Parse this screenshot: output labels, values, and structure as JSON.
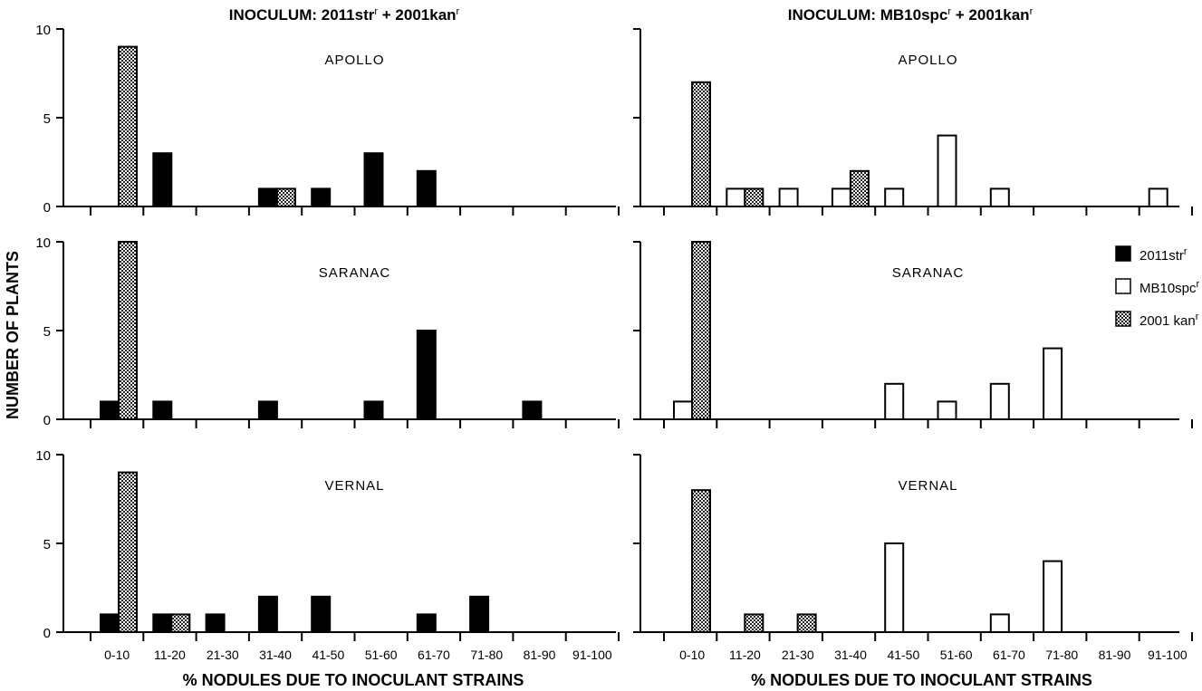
{
  "titles": [
    {
      "prefix": "INOCULUM:  2011str",
      "sup": "r",
      "suffix": " + 2001kan",
      "sup2": "r"
    },
    {
      "prefix": "INOCULUM:  MB10spc",
      "sup": "r",
      "suffix": " + 2001kan",
      "sup2": "r"
    }
  ],
  "ylabel": "NUMBER OF PLANTS",
  "legend": [
    {
      "label": "2011str",
      "sup": "r",
      "pattern": "solid"
    },
    {
      "label": "MB10spc",
      "sup": "r",
      "pattern": "open"
    },
    {
      "label": "2001 kan",
      "sup": "r",
      "pattern": "checker"
    }
  ],
  "colors": {
    "solid": "#000000",
    "open": "#ffffff",
    "checker_dark": "#222222",
    "checker_light": "#ffffff",
    "axis": "#000000"
  },
  "chart_data": [
    {
      "type": "bar",
      "panel": "Left column, APOLLO",
      "cultivar": "APOLLO",
      "categories": [
        "0-10",
        "11-20",
        "21-30",
        "31-40",
        "41-50",
        "51-60",
        "61-70",
        "71-80",
        "81-90",
        "91-100"
      ],
      "xlabel": "% NODULES DUE TO INOCULANT STRAINS",
      "ylim": [
        0,
        10
      ],
      "yticks": [
        0,
        5,
        10
      ],
      "series": [
        {
          "name": "2011str",
          "pattern": "solid",
          "values": [
            0,
            3,
            0,
            1,
            1,
            3,
            2,
            0,
            0,
            0
          ]
        },
        {
          "name": "2001kan",
          "pattern": "checker",
          "values": [
            9,
            0,
            0,
            1,
            0,
            0,
            0,
            0,
            0,
            0
          ]
        }
      ]
    },
    {
      "type": "bar",
      "panel": "Left column, SARANAC",
      "cultivar": "SARANAC",
      "categories": [
        "0-10",
        "11-20",
        "21-30",
        "31-40",
        "41-50",
        "51-60",
        "61-70",
        "71-80",
        "81-90",
        "91-100"
      ],
      "xlabel": "% NODULES DUE TO INOCULANT STRAINS",
      "ylim": [
        0,
        10
      ],
      "yticks": [
        0,
        5,
        10
      ],
      "series": [
        {
          "name": "2011str",
          "pattern": "solid",
          "values": [
            1,
            1,
            0,
            1,
            0,
            1,
            5,
            0,
            1,
            0
          ]
        },
        {
          "name": "2001kan",
          "pattern": "checker",
          "values": [
            10,
            0,
            0,
            0,
            0,
            0,
            0,
            0,
            0,
            0
          ]
        }
      ]
    },
    {
      "type": "bar",
      "panel": "Left column, VERNAL",
      "cultivar": "VERNAL",
      "categories": [
        "0-10",
        "11-20",
        "21-30",
        "31-40",
        "41-50",
        "51-60",
        "61-70",
        "71-80",
        "81-90",
        "91-100"
      ],
      "xlabel": "% NODULES DUE TO INOCULANT STRAINS",
      "ylim": [
        0,
        10
      ],
      "yticks": [
        0,
        5,
        10
      ],
      "series": [
        {
          "name": "2011str",
          "pattern": "solid",
          "values": [
            1,
            1,
            1,
            2,
            2,
            0,
            1,
            2,
            0,
            0
          ]
        },
        {
          "name": "2001kan",
          "pattern": "checker",
          "values": [
            9,
            1,
            0,
            0,
            0,
            0,
            0,
            0,
            0,
            0
          ]
        }
      ]
    },
    {
      "type": "bar",
      "panel": "Right column, APOLLO",
      "cultivar": "APOLLO",
      "categories": [
        "0-10",
        "11-20",
        "21-30",
        "31-40",
        "41-50",
        "51-60",
        "61-70",
        "71-80",
        "81-90",
        "91-100"
      ],
      "xlabel": "% NODULES DUE TO INOCULANT STRAINS",
      "ylim": [
        0,
        10
      ],
      "yticks": [
        0,
        5,
        10
      ],
      "series": [
        {
          "name": "MB10spc",
          "pattern": "open",
          "values": [
            0,
            1,
            1,
            1,
            1,
            4,
            1,
            0,
            0,
            1
          ]
        },
        {
          "name": "2001kan",
          "pattern": "checker",
          "values": [
            7,
            1,
            0,
            2,
            0,
            0,
            0,
            0,
            0,
            0
          ]
        }
      ]
    },
    {
      "type": "bar",
      "panel": "Right column, SARANAC",
      "cultivar": "SARANAC",
      "categories": [
        "0-10",
        "11-20",
        "21-30",
        "31-40",
        "41-50",
        "51-60",
        "61-70",
        "71-80",
        "81-90",
        "91-100"
      ],
      "xlabel": "% NODULES DUE TO INOCULANT STRAINS",
      "ylim": [
        0,
        10
      ],
      "yticks": [
        0,
        5,
        10
      ],
      "series": [
        {
          "name": "MB10spc",
          "pattern": "open",
          "values": [
            1,
            0,
            0,
            0,
            2,
            1,
            2,
            4,
            0,
            0
          ]
        },
        {
          "name": "2001kan",
          "pattern": "checker",
          "values": [
            10,
            0,
            0,
            0,
            0,
            0,
            0,
            0,
            0,
            0
          ]
        }
      ]
    },
    {
      "type": "bar",
      "panel": "Right column, VERNAL",
      "cultivar": "VERNAL",
      "categories": [
        "0-10",
        "11-20",
        "21-30",
        "31-40",
        "41-50",
        "51-60",
        "61-70",
        "71-80",
        "81-90",
        "91-100"
      ],
      "xlabel": "% NODULES DUE TO INOCULANT STRAINS",
      "ylim": [
        0,
        10
      ],
      "yticks": [
        0,
        5,
        10
      ],
      "series": [
        {
          "name": "MB10spc",
          "pattern": "open",
          "values": [
            0,
            0,
            0,
            0,
            5,
            0,
            1,
            4,
            0,
            0
          ]
        },
        {
          "name": "2001kan",
          "pattern": "checker",
          "values": [
            8,
            1,
            1,
            0,
            0,
            0,
            0,
            0,
            0,
            0
          ]
        }
      ]
    }
  ]
}
